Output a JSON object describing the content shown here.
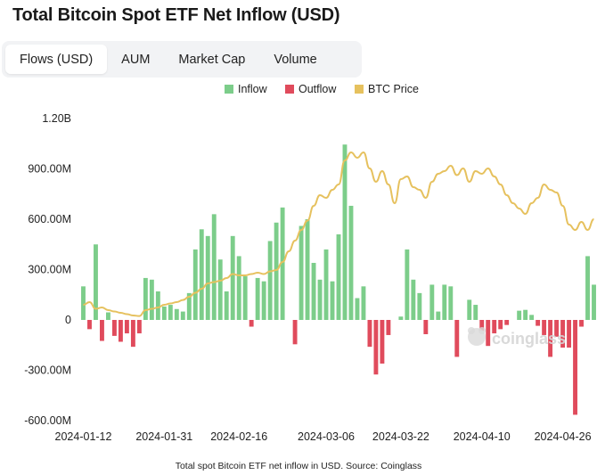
{
  "page": {
    "title": "Total Bitcoin Spot ETF Net Inflow (USD)",
    "caption": "Total spot Bitcoin ETF net inflow in USD. Source: Coinglass",
    "watermark": "coinglass"
  },
  "tabs": [
    {
      "label": "Flows (USD)",
      "active": true
    },
    {
      "label": "AUM",
      "active": false
    },
    {
      "label": "Market Cap",
      "active": false
    },
    {
      "label": "Volume",
      "active": false
    }
  ],
  "colors": {
    "inflow": "#7ccd8a",
    "outflow": "#e04b5c",
    "btc_price": "#e6c15e",
    "axis_text": "#222222",
    "grid": "#eeeeee"
  },
  "chart_data": {
    "type": "bar",
    "title": "Total Bitcoin Spot ETF Net Inflow (USD)",
    "legend": {
      "placement": "top-center",
      "entries": [
        {
          "label": "Inflow",
          "color": "#7ccd8a",
          "shape": "square"
        },
        {
          "label": "Outflow",
          "color": "#e04b5c",
          "shape": "square"
        },
        {
          "label": "BTC Price",
          "color": "#e6c15e",
          "shape": "square"
        }
      ]
    },
    "y_ticks": [
      -600000000,
      -300000000,
      0,
      300000000,
      600000000,
      900000000,
      1200000000
    ],
    "y_tick_labels": [
      "-600.00M",
      "-300.00M",
      "0",
      "300.00M",
      "600.00M",
      "900.00M",
      "1.20B"
    ],
    "ylim": [
      -600000000,
      1200000000
    ],
    "x_tick_labels": [
      "2024-01-12",
      "2024-01-31",
      "2024-02-16",
      "2024-03-06",
      "2024-03-22",
      "2024-04-10",
      "2024-04-26"
    ],
    "x_tick_indices": [
      0,
      13,
      25,
      39,
      51,
      64,
      77
    ],
    "net_flow_usd": [
      200000000,
      -55000000,
      450000000,
      -125000000,
      45000000,
      -95000000,
      -130000000,
      -80000000,
      -160000000,
      -80000000,
      250000000,
      240000000,
      170000000,
      80000000,
      90000000,
      65000000,
      50000000,
      160000000,
      420000000,
      540000000,
      500000000,
      630000000,
      360000000,
      170000000,
      500000000,
      380000000,
      260000000,
      -40000000,
      250000000,
      230000000,
      470000000,
      580000000,
      670000000,
      0,
      -145000000,
      560000000,
      600000000,
      340000000,
      240000000,
      420000000,
      230000000,
      510000000,
      1045000000,
      680000000,
      130000000,
      200000000,
      -160000000,
      -325000000,
      -260000000,
      -90000000,
      0,
      20000000,
      420000000,
      240000000,
      160000000,
      -85000000,
      210000000,
      50000000,
      210000000,
      200000000,
      -220000000,
      0,
      120000000,
      90000000,
      -65000000,
      -155000000,
      -80000000,
      -55000000,
      -30000000,
      0,
      55000000,
      60000000,
      30000000,
      -35000000,
      -90000000,
      -220000000,
      -100000000,
      -165000000,
      -165000000,
      -565000000,
      -40000000,
      380000000,
      210000000
    ],
    "btc_price_series": {
      "name": "BTC Price",
      "values": [
        0.42,
        0.43,
        0.405,
        0.41,
        0.4,
        0.395,
        0.39,
        0.385,
        0.38,
        0.378,
        0.4,
        0.405,
        0.41,
        0.42,
        0.425,
        0.43,
        0.438,
        0.45,
        0.465,
        0.48,
        0.5,
        0.505,
        0.51,
        0.52,
        0.535,
        0.53,
        0.53,
        0.535,
        0.54,
        0.535,
        0.545,
        0.55,
        0.58,
        0.62,
        0.66,
        0.7,
        0.735,
        0.79,
        0.83,
        0.82,
        0.85,
        0.87,
        0.96,
        0.99,
        0.97,
        0.99,
        0.93,
        0.88,
        0.92,
        0.87,
        0.8,
        0.89,
        0.9,
        0.86,
        0.85,
        0.82,
        0.88,
        0.91,
        0.92,
        0.94,
        0.905,
        0.93,
        0.88,
        0.92,
        0.91,
        0.93,
        0.9,
        0.87,
        0.83,
        0.8,
        0.78,
        0.76,
        0.8,
        0.82,
        0.87,
        0.85,
        0.84,
        0.79,
        0.72,
        0.7,
        0.73,
        0.7,
        0.74
      ]
    }
  }
}
